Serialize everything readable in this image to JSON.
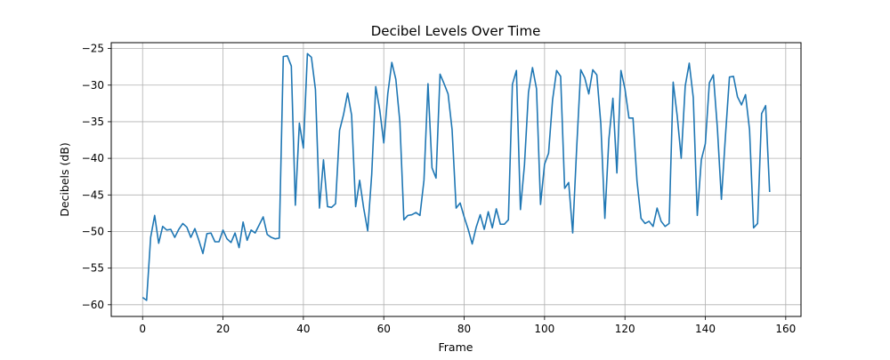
{
  "chart_data": {
    "type": "line",
    "title": "Decibel Levels Over Time",
    "xlabel": "Frame",
    "ylabel": "Decibels (dB)",
    "xlim": [
      -7.8,
      163.8
    ],
    "ylim": [
      -61.6,
      -24.2
    ],
    "xticks": [
      0,
      20,
      40,
      60,
      80,
      100,
      120,
      140,
      160
    ],
    "yticks": [
      -60,
      -55,
      -50,
      -45,
      -40,
      -35,
      -30,
      -25
    ],
    "xtick_labels": [
      "0",
      "20",
      "40",
      "60",
      "80",
      "100",
      "120",
      "140",
      "160"
    ],
    "ytick_labels": [
      "−60",
      "−55",
      "−50",
      "−45",
      "−40",
      "−35",
      "−30",
      "−25"
    ],
    "grid": true,
    "line_color": "#1f77b4",
    "x": [
      0,
      1,
      2,
      3,
      4,
      5,
      6,
      7,
      8,
      9,
      10,
      11,
      12,
      13,
      14,
      15,
      16,
      17,
      18,
      19,
      20,
      21,
      22,
      23,
      24,
      25,
      26,
      27,
      28,
      29,
      30,
      31,
      32,
      33,
      34,
      35,
      36,
      37,
      38,
      39,
      40,
      41,
      42,
      43,
      44,
      45,
      46,
      47,
      48,
      49,
      50,
      51,
      52,
      53,
      54,
      55,
      56,
      57,
      58,
      59,
      60,
      61,
      62,
      63,
      64,
      65,
      66,
      67,
      68,
      69,
      70,
      71,
      72,
      73,
      74,
      75,
      76,
      77,
      78,
      79,
      80,
      81,
      82,
      83,
      84,
      85,
      86,
      87,
      88,
      89,
      90,
      91,
      92,
      93,
      94,
      95,
      96,
      97,
      98,
      99,
      100,
      101,
      102,
      103,
      104,
      105,
      106,
      107,
      108,
      109,
      110,
      111,
      112,
      113,
      114,
      115,
      116,
      117,
      118,
      119,
      120,
      121,
      122,
      123,
      124,
      125,
      126,
      127,
      128,
      129,
      130,
      131,
      132,
      133,
      134,
      135,
      136,
      137,
      138,
      139,
      140,
      141,
      142,
      143,
      144,
      145,
      146,
      147,
      148,
      149,
      150,
      151,
      152,
      153,
      154,
      155,
      156
    ],
    "values": [
      -59.0,
      -59.4,
      -50.8,
      -47.8,
      -51.6,
      -49.3,
      -49.8,
      -49.7,
      -50.8,
      -49.7,
      -48.9,
      -49.4,
      -50.8,
      -49.6,
      -51.2,
      -53.0,
      -50.3,
      -50.2,
      -51.4,
      -51.4,
      -49.8,
      -51.0,
      -51.5,
      -50.2,
      -52.2,
      -48.7,
      -51.2,
      -49.8,
      -50.2,
      -49.1,
      -48.0,
      -50.4,
      -50.8,
      -51.0,
      -50.9,
      -26.1,
      -26.0,
      -27.4,
      -46.4,
      -35.2,
      -38.6,
      -25.7,
      -26.2,
      -30.6,
      -46.8,
      -40.2,
      -46.6,
      -46.7,
      -46.2,
      -36.2,
      -34.0,
      -31.1,
      -34.1,
      -46.6,
      -43.0,
      -46.8,
      -49.9,
      -42.2,
      -30.2,
      -33.4,
      -37.9,
      -31.2,
      -26.9,
      -29.2,
      -35.0,
      -48.4,
      -47.8,
      -47.7,
      -47.4,
      -47.8,
      -43.0,
      -29.8,
      -41.3,
      -42.7,
      -28.5,
      -29.8,
      -31.2,
      -36.1,
      -46.8,
      -46.1,
      -48.0,
      -49.7,
      -51.7,
      -49.4,
      -47.7,
      -49.7,
      -47.3,
      -49.5,
      -46.9,
      -49.0,
      -49.0,
      -48.4,
      -29.9,
      -28.0,
      -47.0,
      -40.9,
      -31.0,
      -27.6,
      -30.5,
      -46.3,
      -40.8,
      -39.3,
      -32.0,
      -28.0,
      -28.8,
      -44.1,
      -43.3,
      -50.2,
      -38.5,
      -27.9,
      -29.0,
      -31.2,
      -27.9,
      -28.6,
      -35.3,
      -48.2,
      -37.4,
      -31.8,
      -42.0,
      -28.0,
      -30.5,
      -34.5,
      -34.5,
      -43.1,
      -48.2,
      -48.9,
      -48.6,
      -49.3,
      -46.8,
      -48.6,
      -49.3,
      -48.9,
      -29.6,
      -34.2,
      -40.0,
      -30.1,
      -27.0,
      -31.7,
      -47.8,
      -40.2,
      -38.0,
      -29.7,
      -28.6,
      -35.9,
      -45.6,
      -37.0,
      -28.9,
      -28.8,
      -31.6,
      -32.7,
      -31.3,
      -36.1,
      -49.5,
      -48.9,
      -33.9,
      -32.8,
      -44.6
    ]
  }
}
